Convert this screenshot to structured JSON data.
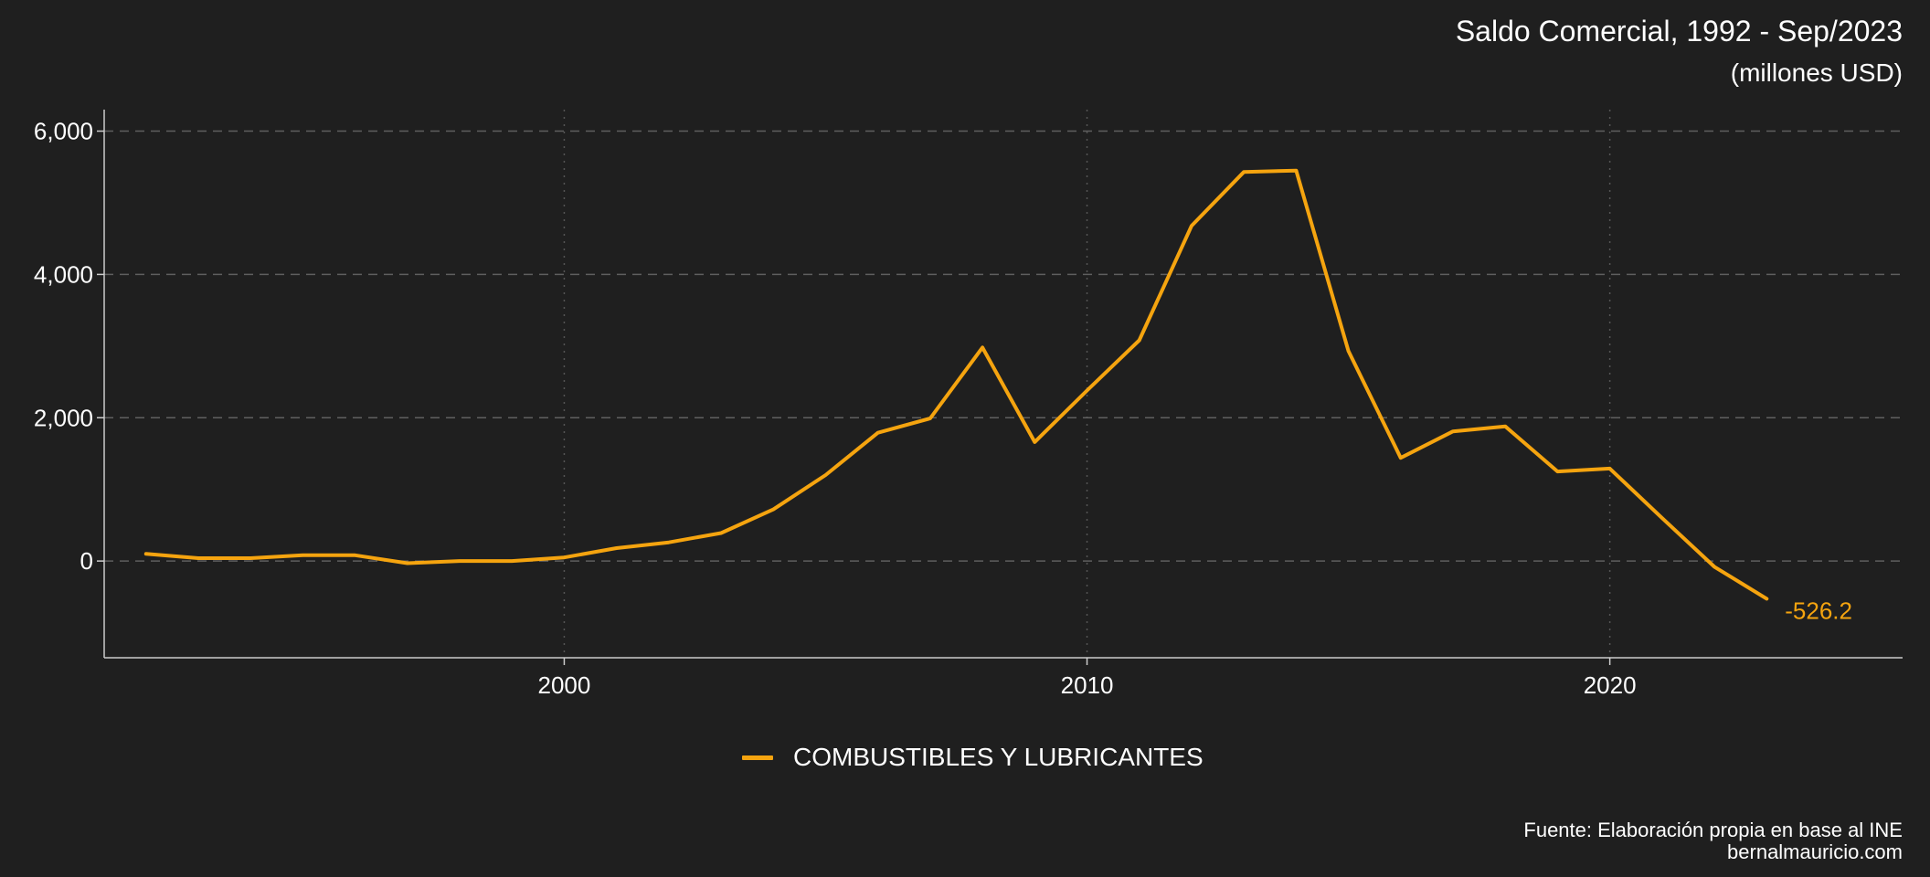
{
  "chart_data": {
    "type": "line",
    "title": "Saldo Comercial, 1992 - Sep/2023",
    "subtitle": "(millones USD)",
    "xlabel": "",
    "ylabel": "",
    "xlim": [
      1991.2,
      2025.6
    ],
    "ylim": [
      -1350,
      6300
    ],
    "x_ticks": [
      2000,
      2010,
      2020
    ],
    "y_ticks": [
      0,
      2000,
      4000,
      6000
    ],
    "y_tick_labels": [
      "0",
      "2,000",
      "4,000",
      "6,000"
    ],
    "grid": {
      "major_y": "dashed",
      "x": "dotted"
    },
    "legend_position": "bottom",
    "series": [
      {
        "name": "COMBUSTIBLES Y LUBRICANTES",
        "color": "#f5a40f",
        "x": [
          1992,
          1993,
          1994,
          1995,
          1996,
          1997,
          1998,
          1999,
          2000,
          2001,
          2002,
          2003,
          2004,
          2005,
          2006,
          2007,
          2008,
          2009,
          2010,
          2011,
          2012,
          2013,
          2014,
          2015,
          2016,
          2017,
          2018,
          2019,
          2020,
          2021,
          2022,
          2023
        ],
        "y": [
          100,
          40,
          40,
          80,
          80,
          -30,
          0,
          0,
          50,
          180,
          260,
          390,
          720,
          1200,
          1790,
          1990,
          2980,
          1660,
          2380,
          3080,
          4680,
          5430,
          5450,
          2930,
          1440,
          1810,
          1880,
          1250,
          1290,
          600,
          -80,
          -526.2
        ]
      }
    ],
    "end_label": "-526.2",
    "caption": {
      "source": "Fuente: Elaboración propia en base al INE",
      "site": "bernalmauricio.com"
    }
  }
}
